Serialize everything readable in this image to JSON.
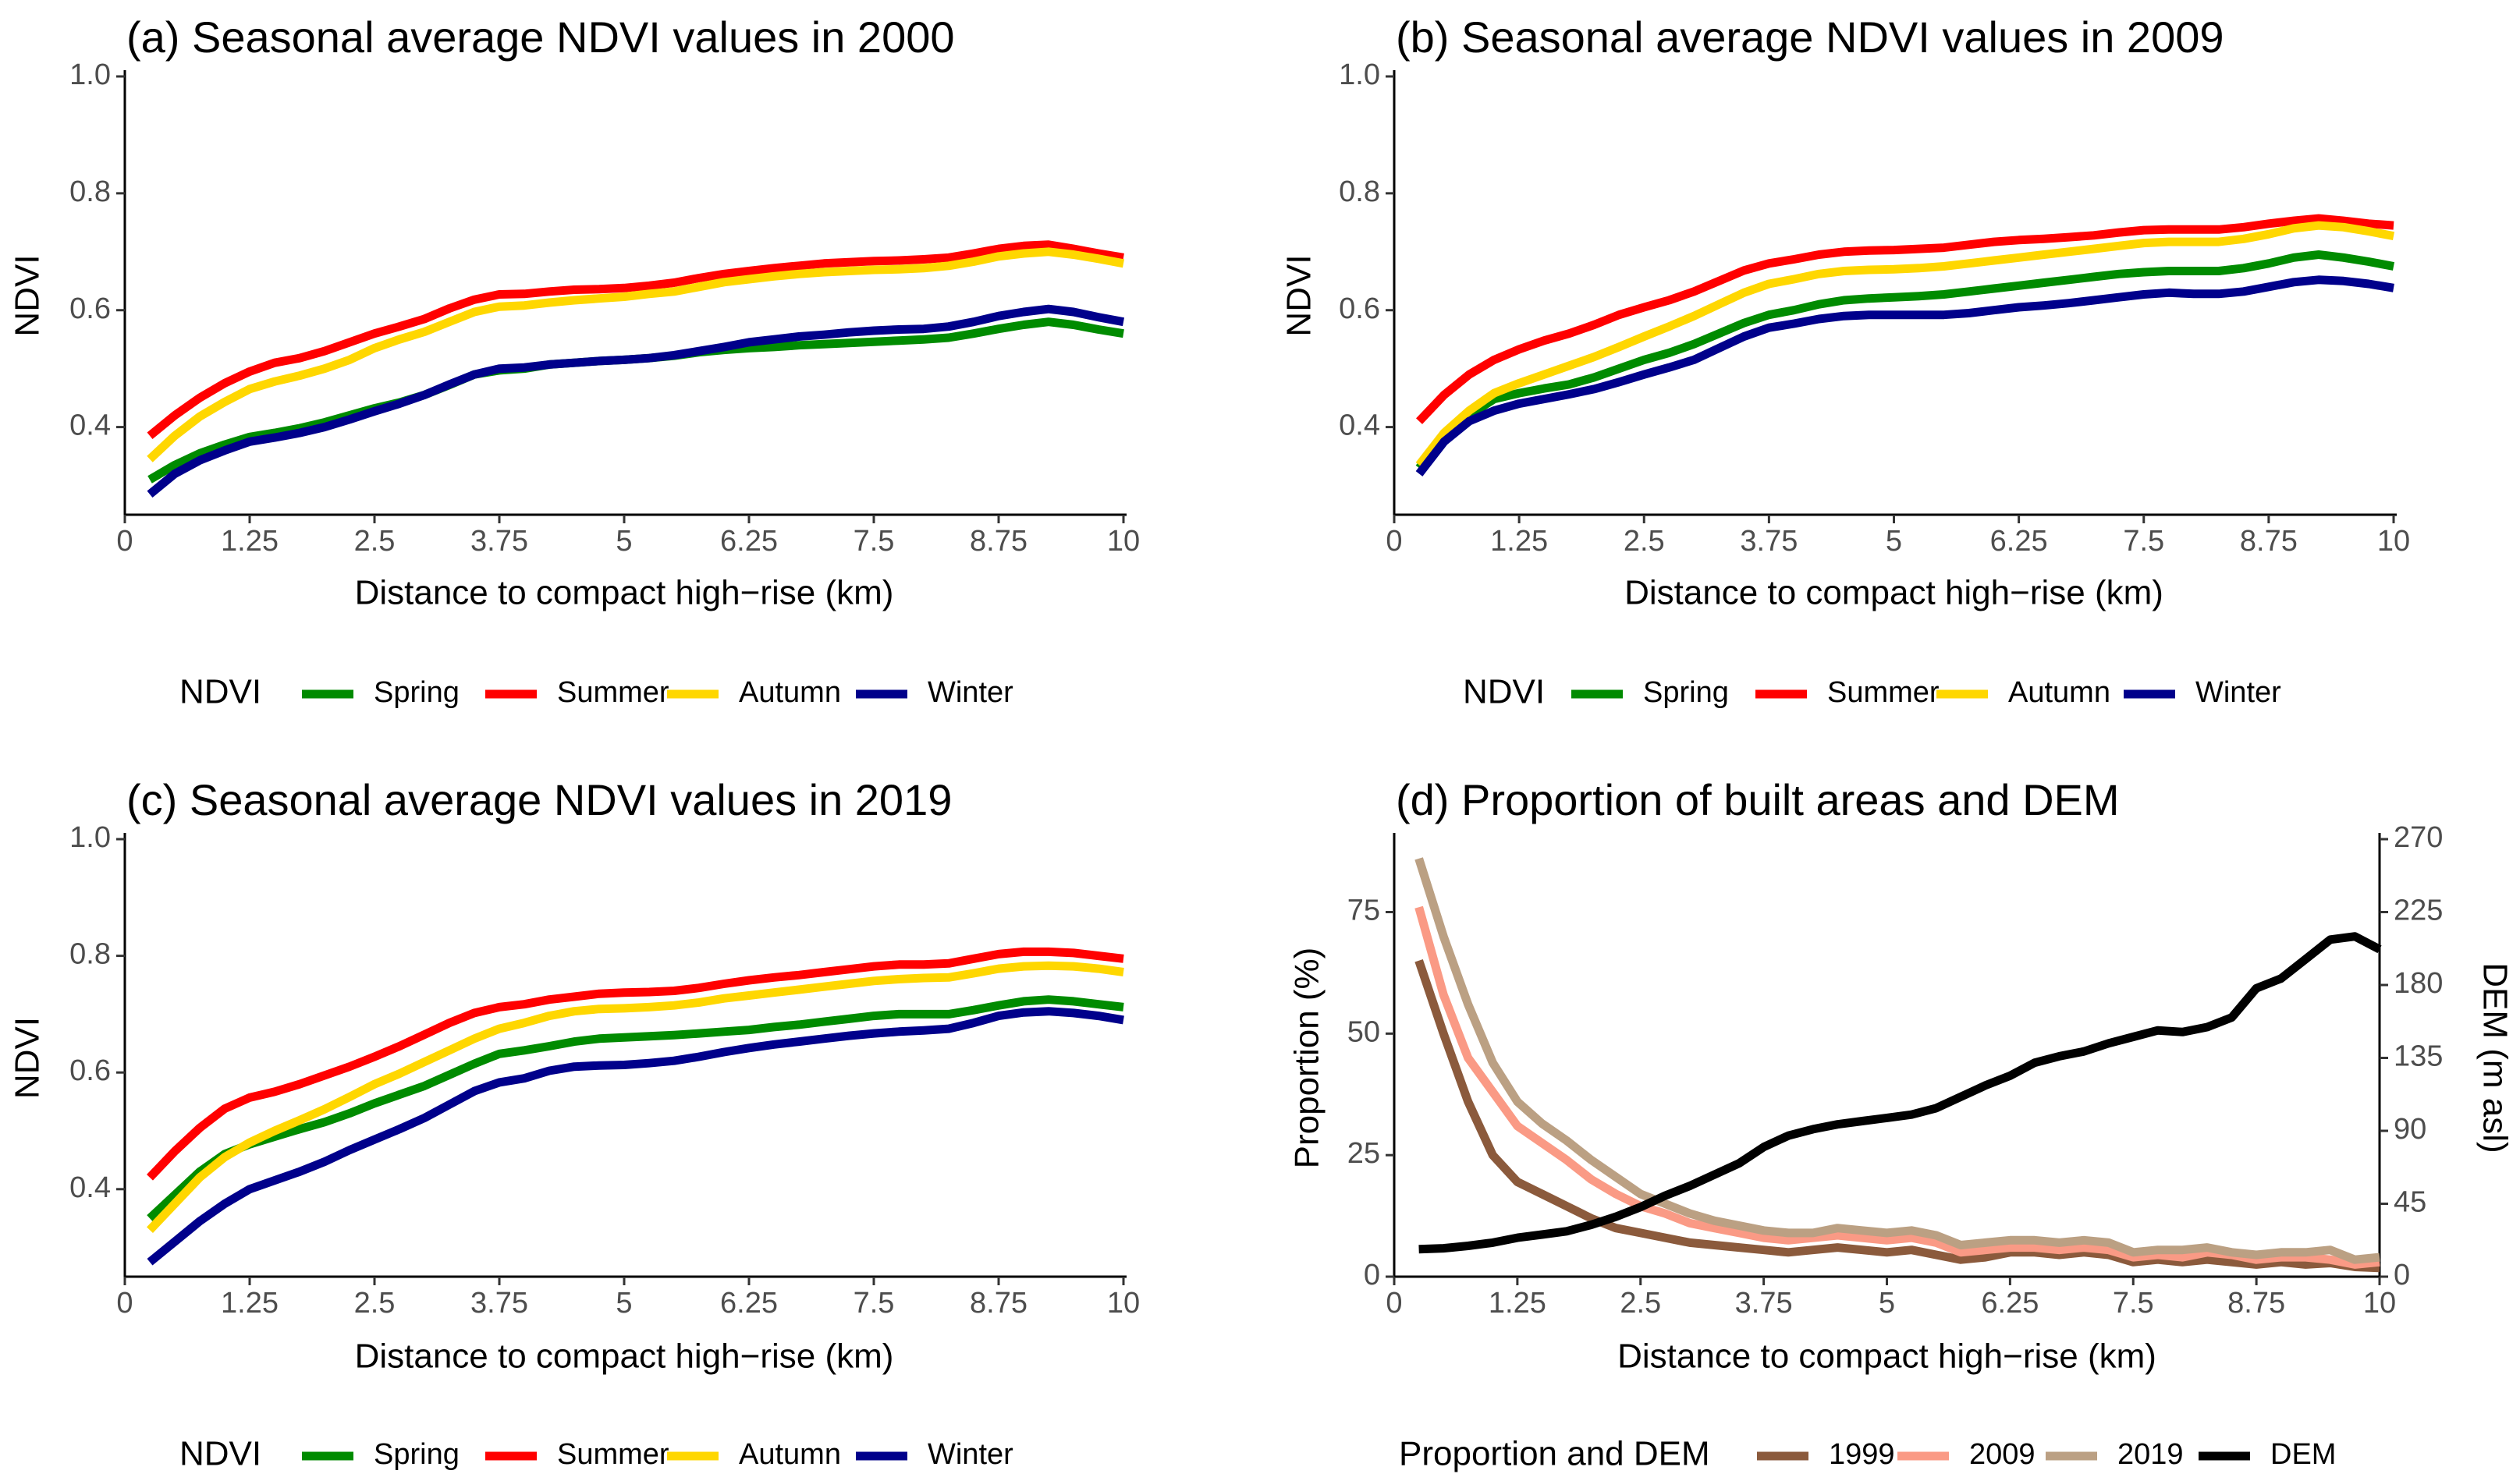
{
  "chart_data": [
    {
      "type": "line",
      "title": "(a) Seasonal average NDVI values in 2000",
      "xlabel": "Distance to compact high−rise (km)",
      "ylabel": "NDVI",
      "xlim": [
        0,
        10
      ],
      "ylim": [
        0.25,
        1.0
      ],
      "xticks": [
        0,
        1.25,
        2.5,
        3.75,
        5,
        6.25,
        7.5,
        8.75,
        10
      ],
      "xtick_labels": [
        "0",
        "1.25",
        "2.5",
        "3.75",
        "5",
        "6.25",
        "7.5",
        "8.75",
        "10"
      ],
      "yticks": [
        0.4,
        0.6,
        0.8,
        1.0
      ],
      "ytick_labels": [
        "0.4",
        "0.6",
        "0.8",
        "1.0"
      ],
      "legend_title": "NDVI",
      "legend_position": "bottom",
      "x": [
        0.25,
        0.5,
        0.75,
        1.0,
        1.25,
        1.5,
        1.75,
        2.0,
        2.25,
        2.5,
        2.75,
        3.0,
        3.25,
        3.5,
        3.75,
        4.0,
        4.25,
        4.5,
        4.75,
        5.0,
        5.25,
        5.5,
        5.75,
        6.0,
        6.25,
        6.5,
        6.75,
        7.0,
        7.25,
        7.5,
        7.75,
        8.0,
        8.25,
        8.5,
        8.75,
        9.0,
        9.25,
        9.5,
        9.75,
        10.0
      ],
      "series": [
        {
          "name": "Spring",
          "color": "#008B00",
          "values": [
            0.31,
            0.335,
            0.355,
            0.37,
            0.383,
            0.39,
            0.398,
            0.408,
            0.42,
            0.432,
            0.442,
            0.455,
            0.472,
            0.49,
            0.497,
            0.5,
            0.507,
            0.51,
            0.513,
            0.515,
            0.518,
            0.522,
            0.528,
            0.532,
            0.535,
            0.537,
            0.54,
            0.542,
            0.544,
            0.546,
            0.548,
            0.55,
            0.553,
            0.56,
            0.568,
            0.575,
            0.58,
            0.575,
            0.567,
            0.56
          ]
        },
        {
          "name": "Summer",
          "color": "#FF0000",
          "values": [
            0.385,
            0.42,
            0.45,
            0.475,
            0.495,
            0.51,
            0.518,
            0.53,
            0.545,
            0.56,
            0.572,
            0.585,
            0.603,
            0.618,
            0.627,
            0.628,
            0.632,
            0.635,
            0.636,
            0.638,
            0.642,
            0.647,
            0.655,
            0.662,
            0.667,
            0.672,
            0.676,
            0.68,
            0.682,
            0.684,
            0.685,
            0.687,
            0.69,
            0.697,
            0.705,
            0.71,
            0.712,
            0.705,
            0.697,
            0.69
          ]
        },
        {
          "name": "Autumn",
          "color": "#FFD700",
          "values": [
            0.345,
            0.385,
            0.418,
            0.443,
            0.465,
            0.478,
            0.488,
            0.5,
            0.515,
            0.535,
            0.55,
            0.563,
            0.58,
            0.597,
            0.606,
            0.608,
            0.613,
            0.617,
            0.62,
            0.623,
            0.628,
            0.632,
            0.64,
            0.648,
            0.653,
            0.658,
            0.662,
            0.665,
            0.667,
            0.669,
            0.67,
            0.672,
            0.676,
            0.683,
            0.692,
            0.697,
            0.7,
            0.695,
            0.688,
            0.68
          ]
        },
        {
          "name": "Winter",
          "color": "#00008B",
          "values": [
            0.285,
            0.32,
            0.343,
            0.36,
            0.375,
            0.382,
            0.39,
            0.4,
            0.413,
            0.427,
            0.44,
            0.455,
            0.473,
            0.49,
            0.5,
            0.502,
            0.507,
            0.51,
            0.513,
            0.515,
            0.518,
            0.523,
            0.53,
            0.537,
            0.545,
            0.55,
            0.555,
            0.558,
            0.562,
            0.565,
            0.567,
            0.568,
            0.572,
            0.58,
            0.59,
            0.597,
            0.602,
            0.597,
            0.588,
            0.58
          ]
        }
      ]
    },
    {
      "type": "line",
      "title": "(b) Seasonal average NDVI values in 2009",
      "xlabel": "Distance to compact high−rise (km)",
      "ylabel": "NDVI",
      "xlim": [
        0,
        10
      ],
      "ylim": [
        0.25,
        1.0
      ],
      "xticks": [
        0,
        1.25,
        2.5,
        3.75,
        5,
        6.25,
        7.5,
        8.75,
        10
      ],
      "xtick_labels": [
        "0",
        "1.25",
        "2.5",
        "3.75",
        "5",
        "6.25",
        "7.5",
        "8.75",
        "10"
      ],
      "yticks": [
        0.4,
        0.6,
        0.8,
        1.0
      ],
      "ytick_labels": [
        "0.4",
        "0.6",
        "0.8",
        "1.0"
      ],
      "legend_title": "NDVI",
      "legend_position": "bottom",
      "x": [
        0.25,
        0.5,
        0.75,
        1.0,
        1.25,
        1.5,
        1.75,
        2.0,
        2.25,
        2.5,
        2.75,
        3.0,
        3.25,
        3.5,
        3.75,
        4.0,
        4.25,
        4.5,
        4.75,
        5.0,
        5.25,
        5.5,
        5.75,
        6.0,
        6.25,
        6.5,
        6.75,
        7.0,
        7.25,
        7.5,
        7.75,
        8.0,
        8.25,
        8.5,
        8.75,
        9.0,
        9.25,
        9.5,
        9.75,
        10.0
      ],
      "series": [
        {
          "name": "Spring",
          "color": "#008B00",
          "values": [
            0.33,
            0.385,
            0.42,
            0.448,
            0.458,
            0.466,
            0.473,
            0.485,
            0.5,
            0.515,
            0.527,
            0.542,
            0.56,
            0.578,
            0.592,
            0.6,
            0.61,
            0.617,
            0.62,
            0.622,
            0.624,
            0.627,
            0.632,
            0.637,
            0.642,
            0.647,
            0.652,
            0.657,
            0.662,
            0.665,
            0.667,
            0.667,
            0.667,
            0.672,
            0.68,
            0.69,
            0.695,
            0.69,
            0.683,
            0.675
          ]
        },
        {
          "name": "Summer",
          "color": "#FF0000",
          "values": [
            0.41,
            0.455,
            0.49,
            0.515,
            0.533,
            0.548,
            0.56,
            0.575,
            0.592,
            0.605,
            0.617,
            0.632,
            0.65,
            0.668,
            0.68,
            0.687,
            0.695,
            0.7,
            0.702,
            0.703,
            0.705,
            0.707,
            0.712,
            0.717,
            0.72,
            0.722,
            0.725,
            0.728,
            0.733,
            0.737,
            0.738,
            0.738,
            0.738,
            0.742,
            0.748,
            0.753,
            0.757,
            0.753,
            0.748,
            0.745
          ]
        },
        {
          "name": "Autumn",
          "color": "#FFD700",
          "values": [
            0.335,
            0.39,
            0.428,
            0.458,
            0.475,
            0.49,
            0.505,
            0.52,
            0.537,
            0.555,
            0.572,
            0.59,
            0.61,
            0.63,
            0.645,
            0.653,
            0.662,
            0.667,
            0.669,
            0.67,
            0.672,
            0.675,
            0.68,
            0.685,
            0.69,
            0.695,
            0.7,
            0.705,
            0.71,
            0.715,
            0.717,
            0.717,
            0.717,
            0.722,
            0.73,
            0.74,
            0.745,
            0.742,
            0.735,
            0.727
          ]
        },
        {
          "name": "Winter",
          "color": "#00008B",
          "values": [
            0.32,
            0.375,
            0.41,
            0.428,
            0.44,
            0.448,
            0.456,
            0.465,
            0.477,
            0.49,
            0.502,
            0.515,
            0.535,
            0.555,
            0.57,
            0.577,
            0.585,
            0.59,
            0.592,
            0.592,
            0.592,
            0.592,
            0.595,
            0.6,
            0.605,
            0.608,
            0.612,
            0.617,
            0.622,
            0.627,
            0.63,
            0.628,
            0.628,
            0.632,
            0.64,
            0.648,
            0.652,
            0.65,
            0.645,
            0.638
          ]
        }
      ]
    },
    {
      "type": "line",
      "title": "(c) Seasonal average NDVI values in 2019",
      "xlabel": "Distance to compact high−rise (km)",
      "ylabel": "NDVI",
      "xlim": [
        0,
        10
      ],
      "ylim": [
        0.25,
        1.0
      ],
      "xticks": [
        0,
        1.25,
        2.5,
        3.75,
        5,
        6.25,
        7.5,
        8.75,
        10
      ],
      "xtick_labels": [
        "0",
        "1.25",
        "2.5",
        "3.75",
        "5",
        "6.25",
        "7.5",
        "8.75",
        "10"
      ],
      "yticks": [
        0.4,
        0.6,
        0.8,
        1.0
      ],
      "ytick_labels": [
        "0.4",
        "0.6",
        "0.8",
        "1.0"
      ],
      "legend_title": "NDVI",
      "legend_position": "bottom",
      "x": [
        0.25,
        0.5,
        0.75,
        1.0,
        1.25,
        1.5,
        1.75,
        2.0,
        2.25,
        2.5,
        2.75,
        3.0,
        3.25,
        3.5,
        3.75,
        4.0,
        4.25,
        4.5,
        4.75,
        5.0,
        5.25,
        5.5,
        5.75,
        6.0,
        6.25,
        6.5,
        6.75,
        7.0,
        7.25,
        7.5,
        7.75,
        8.0,
        8.25,
        8.5,
        8.75,
        9.0,
        9.25,
        9.5,
        9.75,
        10.0
      ],
      "series": [
        {
          "name": "Spring",
          "color": "#008B00",
          "values": [
            0.35,
            0.39,
            0.43,
            0.46,
            0.477,
            0.49,
            0.503,
            0.515,
            0.53,
            0.547,
            0.562,
            0.577,
            0.596,
            0.615,
            0.632,
            0.638,
            0.645,
            0.653,
            0.658,
            0.66,
            0.662,
            0.664,
            0.667,
            0.67,
            0.673,
            0.678,
            0.682,
            0.687,
            0.692,
            0.697,
            0.7,
            0.7,
            0.7,
            0.707,
            0.715,
            0.722,
            0.725,
            0.722,
            0.717,
            0.712
          ]
        },
        {
          "name": "Summer",
          "color": "#FF0000",
          "values": [
            0.42,
            0.465,
            0.505,
            0.538,
            0.557,
            0.567,
            0.58,
            0.595,
            0.61,
            0.627,
            0.645,
            0.665,
            0.685,
            0.702,
            0.712,
            0.717,
            0.725,
            0.73,
            0.735,
            0.737,
            0.738,
            0.74,
            0.745,
            0.752,
            0.758,
            0.763,
            0.767,
            0.772,
            0.777,
            0.782,
            0.785,
            0.785,
            0.787,
            0.795,
            0.803,
            0.807,
            0.807,
            0.805,
            0.8,
            0.795
          ]
        },
        {
          "name": "Autumn",
          "color": "#FFD700",
          "values": [
            0.33,
            0.375,
            0.42,
            0.455,
            0.48,
            0.5,
            0.518,
            0.537,
            0.558,
            0.58,
            0.598,
            0.618,
            0.638,
            0.658,
            0.675,
            0.685,
            0.697,
            0.705,
            0.709,
            0.71,
            0.712,
            0.715,
            0.72,
            0.727,
            0.732,
            0.737,
            0.742,
            0.747,
            0.752,
            0.757,
            0.76,
            0.762,
            0.763,
            0.77,
            0.778,
            0.782,
            0.783,
            0.782,
            0.778,
            0.772
          ]
        },
        {
          "name": "Winter",
          "color": "#00008B",
          "values": [
            0.275,
            0.31,
            0.345,
            0.375,
            0.4,
            0.415,
            0.43,
            0.447,
            0.467,
            0.485,
            0.503,
            0.522,
            0.545,
            0.568,
            0.583,
            0.59,
            0.603,
            0.61,
            0.612,
            0.613,
            0.616,
            0.62,
            0.627,
            0.635,
            0.642,
            0.648,
            0.653,
            0.658,
            0.663,
            0.667,
            0.67,
            0.672,
            0.675,
            0.685,
            0.697,
            0.703,
            0.705,
            0.702,
            0.697,
            0.69
          ]
        }
      ]
    },
    {
      "type": "line",
      "title": "(d) Proportion of built areas and DEM",
      "xlabel": "Distance to compact high−rise (km)",
      "ylabel": "Proportion (%)",
      "y2label": "DEM (m asl)",
      "xlim": [
        0,
        10
      ],
      "ylim": [
        0,
        90
      ],
      "y2lim": [
        0,
        270
      ],
      "xticks": [
        0,
        1.25,
        2.5,
        3.75,
        5,
        6.25,
        7.5,
        8.75,
        10
      ],
      "xtick_labels": [
        "0",
        "1.25",
        "2.5",
        "3.75",
        "5",
        "6.25",
        "7.5",
        "8.75",
        "10"
      ],
      "yticks": [
        0,
        25,
        50,
        75
      ],
      "ytick_labels": [
        "0",
        "25",
        "50",
        "75"
      ],
      "y2ticks": [
        0,
        45,
        90,
        135,
        180,
        225,
        270
      ],
      "y2tick_labels": [
        "0",
        "45",
        "90",
        "135",
        "180",
        "225",
        "270"
      ],
      "legend_title": "Proportion and DEM",
      "legend_position": "bottom",
      "x": [
        0.25,
        0.5,
        0.75,
        1.0,
        1.25,
        1.5,
        1.75,
        2.0,
        2.25,
        2.5,
        2.75,
        3.0,
        3.25,
        3.5,
        3.75,
        4.0,
        4.25,
        4.5,
        4.75,
        5.0,
        5.25,
        5.5,
        5.75,
        6.0,
        6.25,
        6.5,
        6.75,
        7.0,
        7.25,
        7.5,
        7.75,
        8.0,
        8.25,
        8.5,
        8.75,
        9.0,
        9.25,
        9.5,
        9.75,
        10.0
      ],
      "series": [
        {
          "name": "1999",
          "color": "#8B5A3C",
          "axis": "left",
          "values": [
            65,
            50,
            36,
            25,
            19.5,
            17,
            14.5,
            12,
            10,
            9,
            8,
            7,
            6.5,
            6,
            5.5,
            5,
            5.5,
            6,
            5.5,
            5,
            5.5,
            4.5,
            3.5,
            4,
            5,
            5,
            4.5,
            5,
            4.5,
            3,
            3.5,
            3,
            3.5,
            3,
            2.5,
            3,
            2.5,
            2.8,
            2,
            1.8
          ]
        },
        {
          "name": "2009",
          "color": "#FA9A85",
          "axis": "left",
          "values": [
            76,
            58,
            45,
            38,
            31,
            27.5,
            24,
            20,
            17,
            14.5,
            13,
            11,
            10,
            9,
            8,
            7.5,
            8,
            8.5,
            8,
            7.5,
            8,
            7,
            5,
            5.5,
            6,
            6,
            5.5,
            6,
            5.5,
            4,
            4.5,
            4,
            5,
            4.5,
            3.5,
            4,
            4,
            3.5,
            2.5,
            3
          ]
        },
        {
          "name": "2019",
          "color": "#BBA083",
          "axis": "left",
          "values": [
            86,
            70,
            56,
            44,
            36,
            31.5,
            28,
            24,
            20.5,
            17,
            15,
            13,
            11.5,
            10.5,
            9.5,
            9,
            9,
            10,
            9.5,
            9,
            9.5,
            8.5,
            6.5,
            7,
            7.5,
            7.5,
            7,
            7.5,
            7,
            5,
            5.5,
            5.5,
            6,
            5,
            4.5,
            5,
            5,
            5.5,
            3.5,
            4
          ]
        },
        {
          "name": "DEM",
          "color": "#000000",
          "axis": "right",
          "values": [
            17,
            17.5,
            19,
            21,
            24,
            26,
            28,
            32,
            37,
            43,
            50,
            56,
            63,
            70,
            80,
            87,
            91,
            94,
            96,
            98,
            100,
            104,
            111,
            118,
            124,
            132,
            136,
            139,
            144,
            148,
            152,
            151,
            154,
            160,
            178,
            184,
            196,
            208,
            210,
            202
          ]
        }
      ]
    }
  ]
}
